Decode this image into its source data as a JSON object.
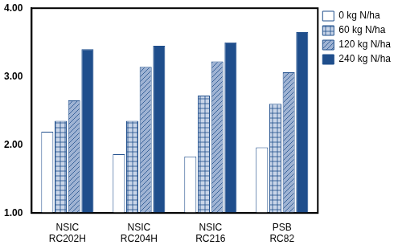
{
  "chart_data": {
    "type": "bar",
    "categories": [
      "NSIC RC202H",
      "NSIC RC204H",
      "NSIC RC216",
      "PSB RC82"
    ],
    "series": [
      {
        "name": "0 kg N/ha",
        "color": "#ffffff",
        "values": [
          2.19,
          1.86,
          1.83,
          1.96
        ]
      },
      {
        "name": "60 kg N/ha",
        "color": "#c9d5e8",
        "values": [
          2.35,
          2.35,
          2.72,
          2.6
        ]
      },
      {
        "name": "120 kg N/ha",
        "color": "#9fb3d3",
        "values": [
          2.65,
          3.14,
          3.22,
          3.06
        ]
      },
      {
        "name": "240 kg N/ha",
        "color": "#1f4e8c",
        "values": [
          3.4,
          3.45,
          3.5,
          3.65
        ]
      }
    ],
    "ylim": [
      1,
      4
    ],
    "yticks": [
      {
        "value": 1,
        "label": "1.00"
      },
      {
        "value": 2,
        "label": "2.00"
      },
      {
        "value": 3,
        "label": "3.00"
      },
      {
        "value": 4,
        "label": "4.00"
      }
    ],
    "grid": false,
    "legend": "right"
  }
}
